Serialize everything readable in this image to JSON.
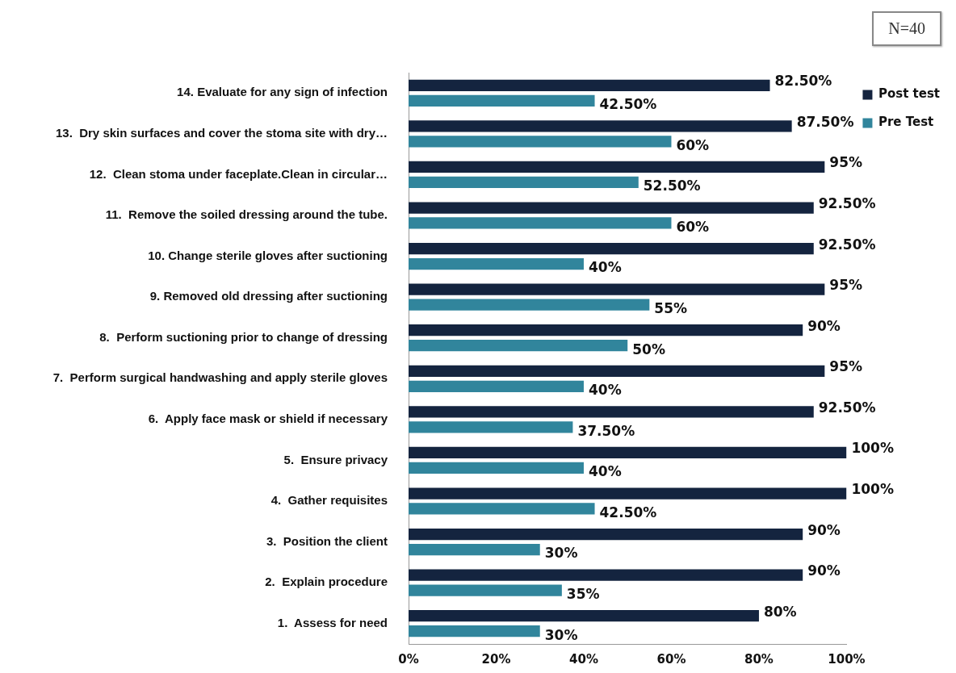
{
  "chart_data": {
    "type": "bar",
    "orientation": "horizontal",
    "categories": [
      "14. Evaluate for any sign of infection",
      "13.  Dry skin surfaces and cover the stoma site with dry…",
      "12.  Clean stoma under faceplate.Clean in circular…",
      "11.  Remove the soiled dressing around the tube.",
      "10. Change sterile gloves after suctioning",
      "9. Removed old dressing after suctioning",
      "8.  Perform suctioning prior to change of dressing",
      "7.  Perform surgical handwashing and apply sterile gloves",
      "6.  Apply face mask or shield if necessary",
      "5.  Ensure privacy",
      "4.  Gather requisites",
      "3.  Position the client",
      "2.  Explain procedure",
      "1.  Assess for need"
    ],
    "series": [
      {
        "name": "Post test",
        "color": "#14243f",
        "values": [
          82.5,
          87.5,
          95,
          92.5,
          92.5,
          95,
          90,
          95,
          92.5,
          100,
          100,
          90,
          90,
          80
        ],
        "value_labels": [
          "82.50%",
          "87.50%",
          "95%",
          "92.50%",
          "92.50%",
          "95%",
          "90%",
          "95%",
          "92.50%",
          "100%",
          "100%",
          "90%",
          "90%",
          "80%"
        ]
      },
      {
        "name": "Pre Test",
        "color": "#31859c",
        "values": [
          42.5,
          60,
          52.5,
          60,
          40,
          55,
          50,
          40,
          37.5,
          40,
          42.5,
          30,
          35,
          30
        ],
        "value_labels": [
          "42.50%",
          "60%",
          "52.50%",
          "60%",
          "40%",
          "55%",
          "50%",
          "40%",
          "37.50%",
          "40%",
          "42.50%",
          "30%",
          "35%",
          "30%"
        ]
      }
    ],
    "xlim": [
      0,
      100
    ],
    "xticks": [
      {
        "value": 0,
        "label": "0%"
      },
      {
        "value": 20,
        "label": "20%"
      },
      {
        "value": 40,
        "label": "40%"
      },
      {
        "value": 60,
        "label": "60%"
      },
      {
        "value": 80,
        "label": "80%"
      },
      {
        "value": 100,
        "label": "100%"
      }
    ],
    "grid": false,
    "legend": "top right",
    "annotations": [
      "N=40"
    ]
  }
}
